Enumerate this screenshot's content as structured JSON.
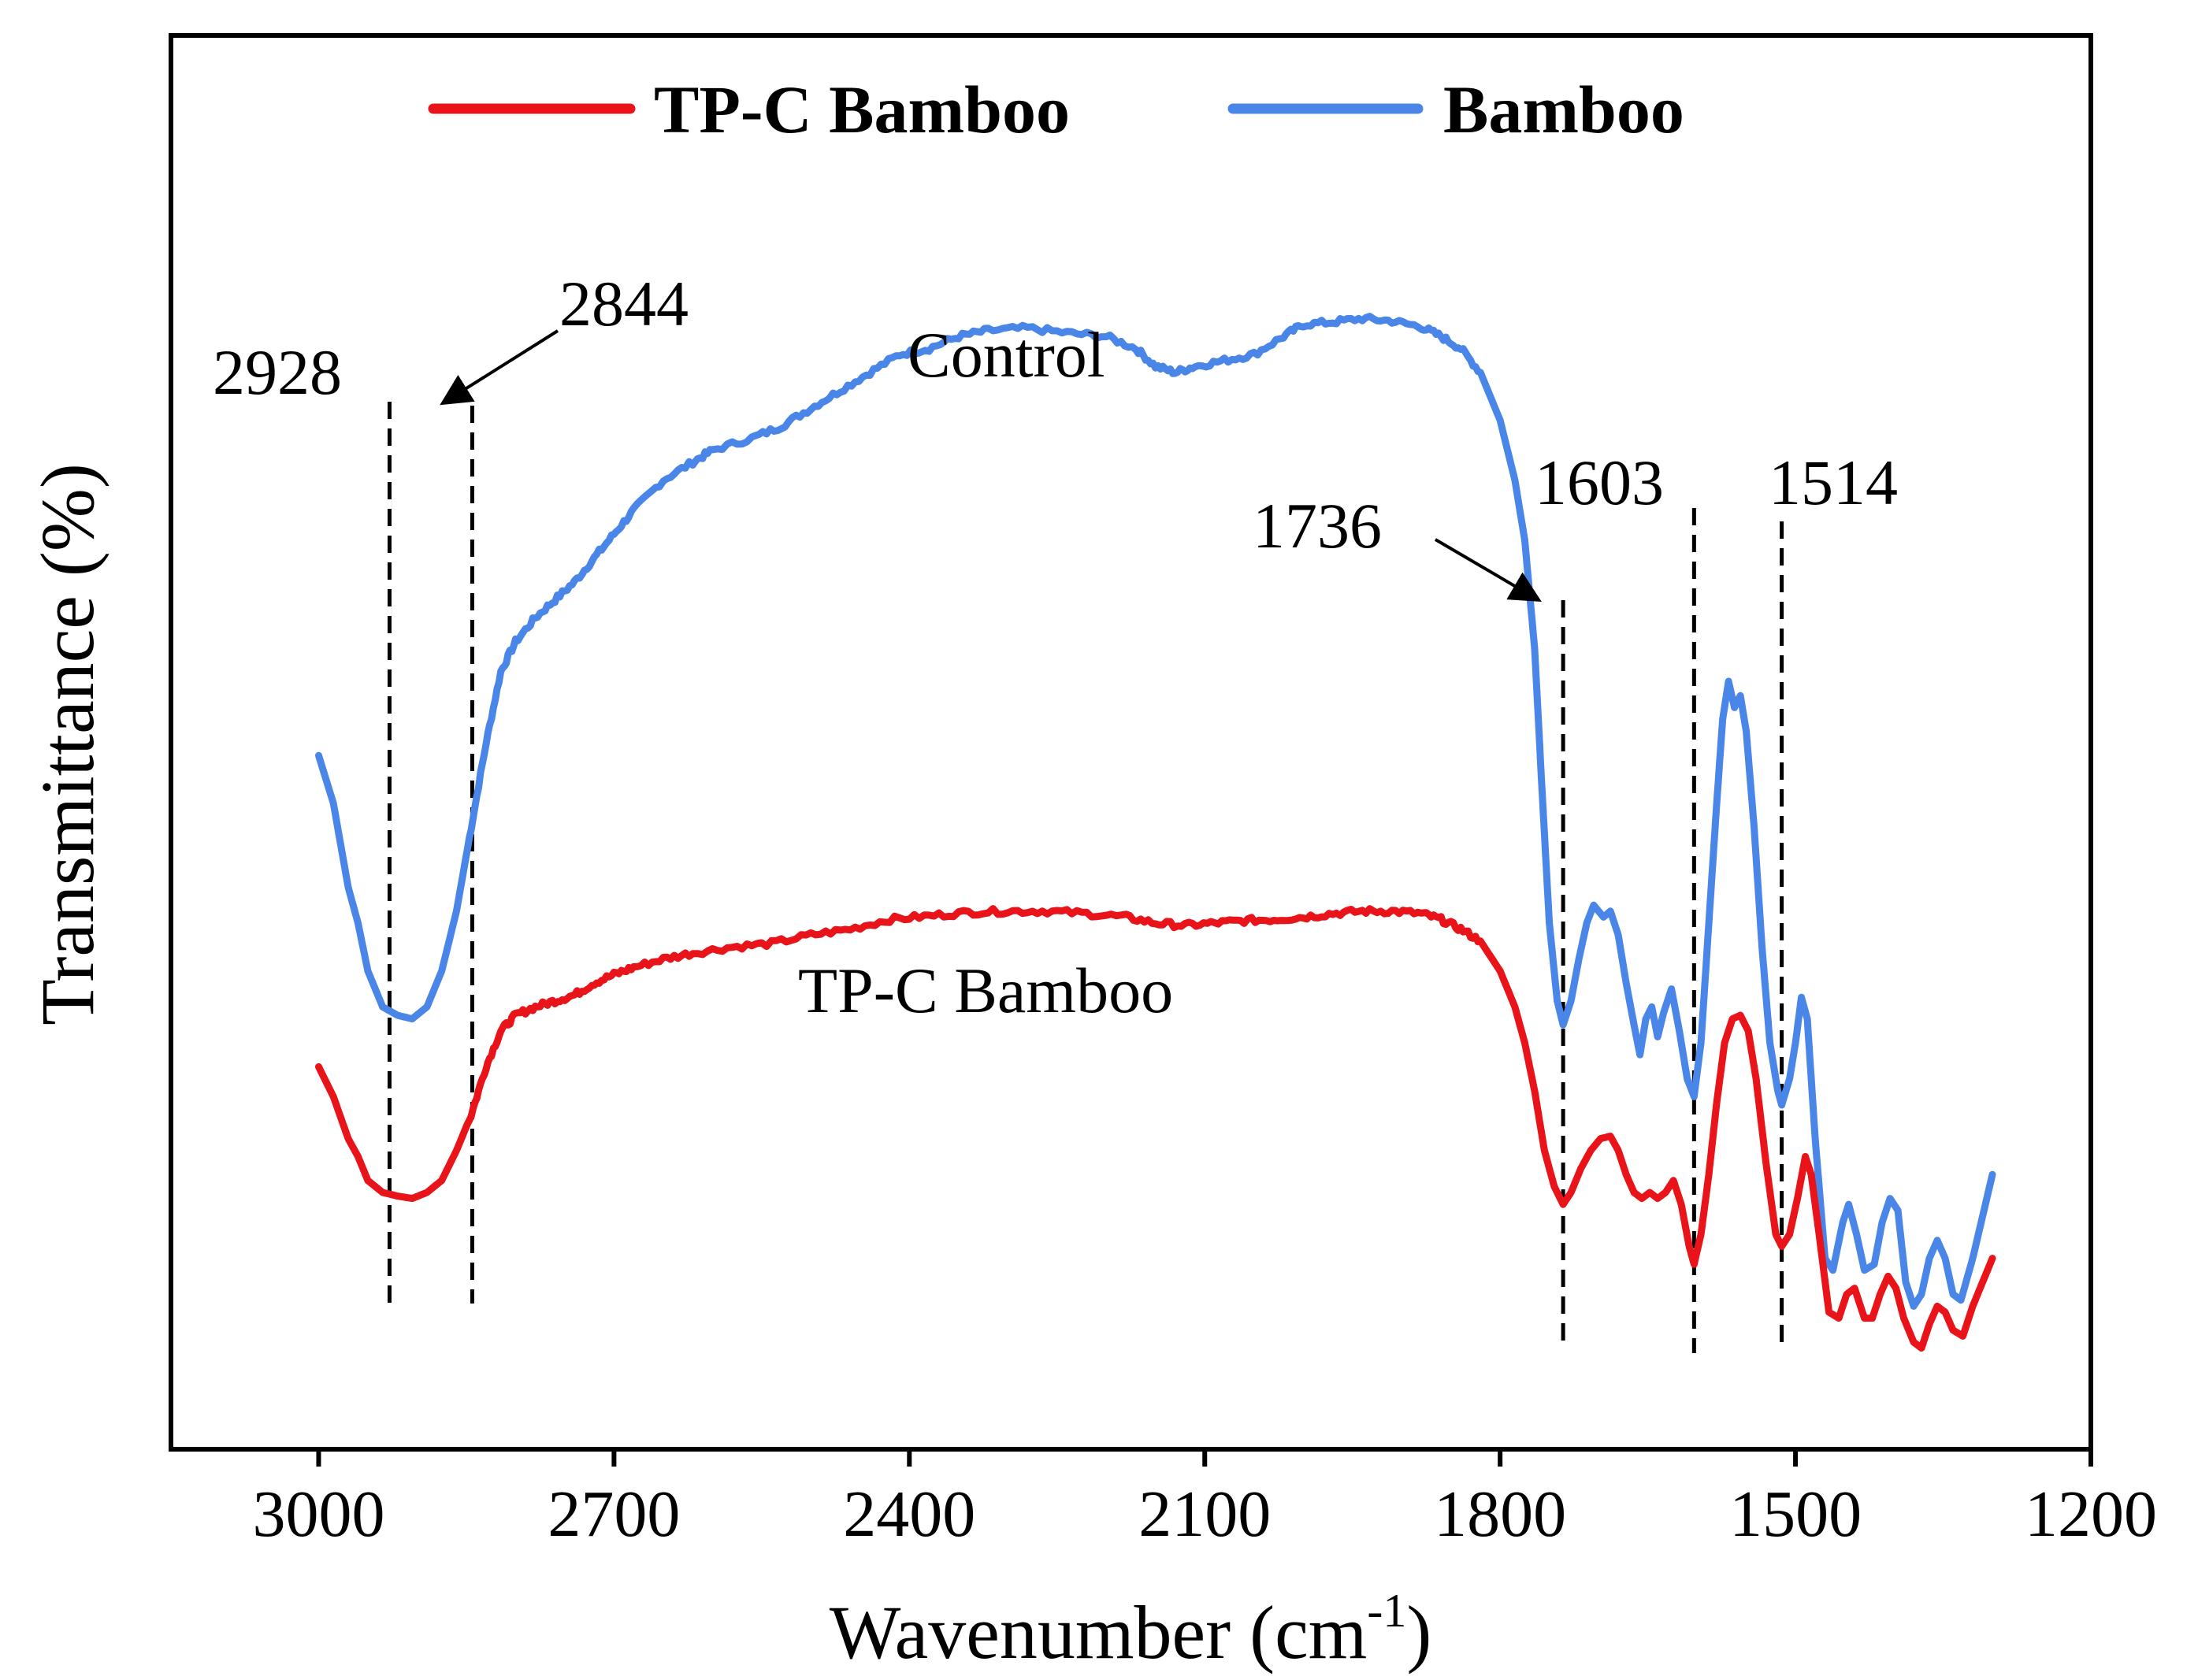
{
  "chart_data": {
    "type": "line",
    "title": "",
    "xlabel": "Wavenumber (cm",
    "xlabel_sup": "-1",
    "xlabel_end": ")",
    "ylabel": "Transmittance (%)",
    "xlim": [
      3150,
      1200
    ],
    "ylim": [
      0,
      100
    ],
    "x_reversed": true,
    "x_ticks": [
      3000,
      2700,
      2400,
      2100,
      1800,
      1500,
      1200
    ],
    "x_tick_labels": [
      "3000",
      "2700",
      "2400",
      "2100",
      "1800",
      "1500",
      "1200"
    ],
    "y_ticks_shown": false,
    "legend_position": "top",
    "legend": [
      {
        "name": "TP-C Bamboo",
        "color": "#e8141a"
      },
      {
        "name": "Bamboo",
        "color": "#4a86e8"
      }
    ],
    "series": [
      {
        "name": "Bamboo",
        "color": "#4a86e8",
        "points": [
          [
            3000,
            54
          ],
          [
            2985,
            50
          ],
          [
            2970,
            43
          ],
          [
            2960,
            40
          ],
          [
            2950,
            36
          ],
          [
            2935,
            33
          ],
          [
            2920,
            32.3
          ],
          [
            2905,
            32
          ],
          [
            2890,
            33
          ],
          [
            2875,
            36
          ],
          [
            2860,
            41
          ],
          [
            2845,
            48
          ],
          [
            2830,
            55
          ],
          [
            2815,
            61
          ],
          [
            2800,
            63.5
          ],
          [
            2780,
            65.5
          ],
          [
            2760,
            67
          ],
          [
            2740,
            68.5
          ],
          [
            2720,
            70.5
          ],
          [
            2700,
            72.5
          ],
          [
            2680,
            74.5
          ],
          [
            2650,
            77
          ],
          [
            2620,
            78.5
          ],
          [
            2600,
            79.5
          ],
          [
            2560,
            80.5
          ],
          [
            2530,
            81.5
          ],
          [
            2500,
            83
          ],
          [
            2470,
            84.5
          ],
          [
            2440,
            86
          ],
          [
            2410,
            87.5
          ],
          [
            2380,
            88
          ],
          [
            2350,
            89
          ],
          [
            2320,
            89.5
          ],
          [
            2280,
            89.7
          ],
          [
            2240,
            89.3
          ],
          [
            2200,
            89
          ],
          [
            2170,
            88
          ],
          [
            2150,
            86.5
          ],
          [
            2130,
            86
          ],
          [
            2110,
            86.5
          ],
          [
            2080,
            87
          ],
          [
            2050,
            87.5
          ],
          [
            2020,
            89
          ],
          [
            2000,
            90
          ],
          [
            1970,
            90.2
          ],
          [
            1940,
            90.5
          ],
          [
            1910,
            90.3
          ],
          [
            1880,
            89.8
          ],
          [
            1860,
            89
          ],
          [
            1840,
            88
          ],
          [
            1820,
            86
          ],
          [
            1800,
            82
          ],
          [
            1785,
            77
          ],
          [
            1775,
            72
          ],
          [
            1765,
            63
          ],
          [
            1758,
            52
          ],
          [
            1750,
            40
          ],
          [
            1742,
            33.5
          ],
          [
            1736,
            31.5
          ],
          [
            1728,
            33.5
          ],
          [
            1720,
            37
          ],
          [
            1712,
            40
          ],
          [
            1705,
            41.5
          ],
          [
            1695,
            40.5
          ],
          [
            1688,
            41
          ],
          [
            1680,
            39
          ],
          [
            1672,
            35
          ],
          [
            1664,
            31.5
          ],
          [
            1658,
            29
          ],
          [
            1652,
            32
          ],
          [
            1646,
            33
          ],
          [
            1640,
            30.5
          ],
          [
            1634,
            32.5
          ],
          [
            1626,
            34.5
          ],
          [
            1618,
            31
          ],
          [
            1610,
            27
          ],
          [
            1603,
            25.5
          ],
          [
            1596,
            30
          ],
          [
            1588,
            40
          ],
          [
            1580,
            50
          ],
          [
            1574,
            57
          ],
          [
            1568,
            60.2
          ],
          [
            1562,
            58
          ],
          [
            1556,
            59
          ],
          [
            1550,
            56
          ],
          [
            1542,
            48
          ],
          [
            1534,
            38
          ],
          [
            1526,
            30
          ],
          [
            1518,
            26
          ],
          [
            1514,
            24.8
          ],
          [
            1506,
            27
          ],
          [
            1500,
            30
          ],
          [
            1494,
            33.8
          ],
          [
            1488,
            32
          ],
          [
            1480,
            22
          ],
          [
            1470,
            12
          ],
          [
            1462,
            11
          ],
          [
            1452,
            15
          ],
          [
            1446,
            16.5
          ],
          [
            1438,
            14
          ],
          [
            1430,
            11
          ],
          [
            1420,
            11.5
          ],
          [
            1412,
            15
          ],
          [
            1404,
            17
          ],
          [
            1396,
            16
          ],
          [
            1388,
            10
          ],
          [
            1380,
            8
          ],
          [
            1372,
            9
          ],
          [
            1364,
            12
          ],
          [
            1356,
            13.5
          ],
          [
            1348,
            12
          ],
          [
            1340,
            9
          ],
          [
            1332,
            8.5
          ],
          [
            1320,
            12
          ],
          [
            1310,
            15.5
          ],
          [
            1300,
            19
          ]
        ]
      },
      {
        "name": "TP-C Bamboo",
        "color": "#e8141a",
        "points": [
          [
            3000,
            28
          ],
          [
            2985,
            25.5
          ],
          [
            2970,
            22
          ],
          [
            2960,
            20.5
          ],
          [
            2950,
            18.5
          ],
          [
            2935,
            17.5
          ],
          [
            2920,
            17.2
          ],
          [
            2905,
            17
          ],
          [
            2890,
            17.5
          ],
          [
            2875,
            18.5
          ],
          [
            2860,
            21
          ],
          [
            2845,
            24
          ],
          [
            2830,
            28
          ],
          [
            2815,
            31
          ],
          [
            2800,
            32.3
          ],
          [
            2780,
            33
          ],
          [
            2760,
            33.5
          ],
          [
            2740,
            34
          ],
          [
            2720,
            35
          ],
          [
            2700,
            35.7
          ],
          [
            2680,
            36.3
          ],
          [
            2650,
            37
          ],
          [
            2620,
            37.5
          ],
          [
            2580,
            38
          ],
          [
            2540,
            38.3
          ],
          [
            2500,
            39
          ],
          [
            2460,
            39.5
          ],
          [
            2420,
            40.3
          ],
          [
            2380,
            40.6
          ],
          [
            2340,
            40.9
          ],
          [
            2300,
            41
          ],
          [
            2260,
            41
          ],
          [
            2220,
            40.8
          ],
          [
            2180,
            40.5
          ],
          [
            2150,
            40
          ],
          [
            2120,
            39.8
          ],
          [
            2090,
            40
          ],
          [
            2060,
            40.2
          ],
          [
            2030,
            40.3
          ],
          [
            2000,
            40.5
          ],
          [
            1970,
            40.8
          ],
          [
            1940,
            41
          ],
          [
            1910,
            41
          ],
          [
            1880,
            40.8
          ],
          [
            1860,
            40.3
          ],
          [
            1840,
            39.5
          ],
          [
            1820,
            38.5
          ],
          [
            1800,
            36
          ],
          [
            1785,
            33
          ],
          [
            1775,
            30
          ],
          [
            1765,
            26
          ],
          [
            1755,
            21
          ],
          [
            1745,
            18
          ],
          [
            1736,
            16.5
          ],
          [
            1728,
            17.5
          ],
          [
            1718,
            19.5
          ],
          [
            1708,
            21
          ],
          [
            1698,
            22
          ],
          [
            1688,
            22.2
          ],
          [
            1680,
            21
          ],
          [
            1672,
            19
          ],
          [
            1664,
            17.5
          ],
          [
            1656,
            17
          ],
          [
            1648,
            17.5
          ],
          [
            1640,
            17
          ],
          [
            1632,
            17.5
          ],
          [
            1624,
            18.5
          ],
          [
            1616,
            16.5
          ],
          [
            1608,
            13
          ],
          [
            1603,
            11.5
          ],
          [
            1596,
            14
          ],
          [
            1588,
            19
          ],
          [
            1580,
            25
          ],
          [
            1572,
            30
          ],
          [
            1564,
            32
          ],
          [
            1556,
            32.3
          ],
          [
            1548,
            31
          ],
          [
            1540,
            27
          ],
          [
            1530,
            20
          ],
          [
            1520,
            14
          ],
          [
            1514,
            13
          ],
          [
            1506,
            14
          ],
          [
            1498,
            17
          ],
          [
            1490,
            20.5
          ],
          [
            1484,
            19
          ],
          [
            1476,
            14
          ],
          [
            1466,
            7.5
          ],
          [
            1456,
            7
          ],
          [
            1448,
            9
          ],
          [
            1440,
            9.5
          ],
          [
            1430,
            7
          ],
          [
            1422,
            7
          ],
          [
            1414,
            9
          ],
          [
            1406,
            10.5
          ],
          [
            1398,
            9.5
          ],
          [
            1390,
            7
          ],
          [
            1380,
            5
          ],
          [
            1372,
            4.5
          ],
          [
            1364,
            6.5
          ],
          [
            1356,
            8
          ],
          [
            1348,
            7.5
          ],
          [
            1340,
            6
          ],
          [
            1330,
            5.5
          ],
          [
            1320,
            8
          ],
          [
            1310,
            10
          ],
          [
            1300,
            12
          ]
        ]
      }
    ],
    "annotations": [
      {
        "text": "2928",
        "x": 2928
      },
      {
        "text": "2844",
        "x": 2844
      },
      {
        "text": "1736",
        "x": 1736
      },
      {
        "text": "1603",
        "x": 1603
      },
      {
        "text": "1514",
        "x": 1514
      }
    ],
    "curve_labels": [
      {
        "text": "Control"
      },
      {
        "text": "TP-C Bamboo"
      }
    ]
  }
}
